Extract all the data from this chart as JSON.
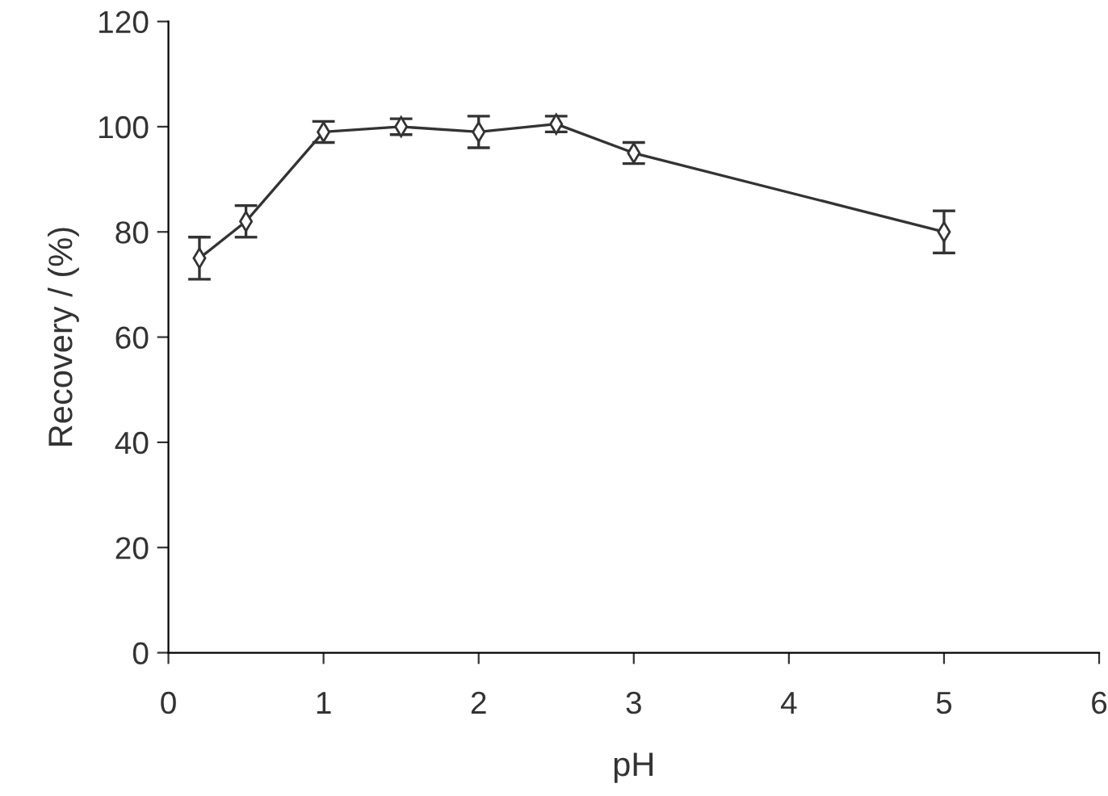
{
  "chart_data": {
    "type": "line",
    "xlabel": "pH",
    "ylabel": "Recovery / (%)",
    "x": [
      0.2,
      0.5,
      1.0,
      1.5,
      2.0,
      2.5,
      3.0,
      5.0
    ],
    "series": [
      {
        "color": "#333333",
        "values": [
          75,
          82,
          99,
          100,
          99,
          100.5,
          95,
          80
        ],
        "errors": [
          4,
          3,
          2,
          1.5,
          3,
          1.5,
          2,
          4
        ]
      }
    ],
    "marker": "diamond",
    "line_style": "solid",
    "xlim": [
      0,
      6
    ],
    "xticks": [
      0,
      1,
      2,
      3,
      4,
      5,
      6
    ],
    "ylim": [
      0,
      120
    ],
    "yticks": [
      0,
      20,
      40,
      60,
      80,
      100,
      120
    ],
    "grid": false
  }
}
